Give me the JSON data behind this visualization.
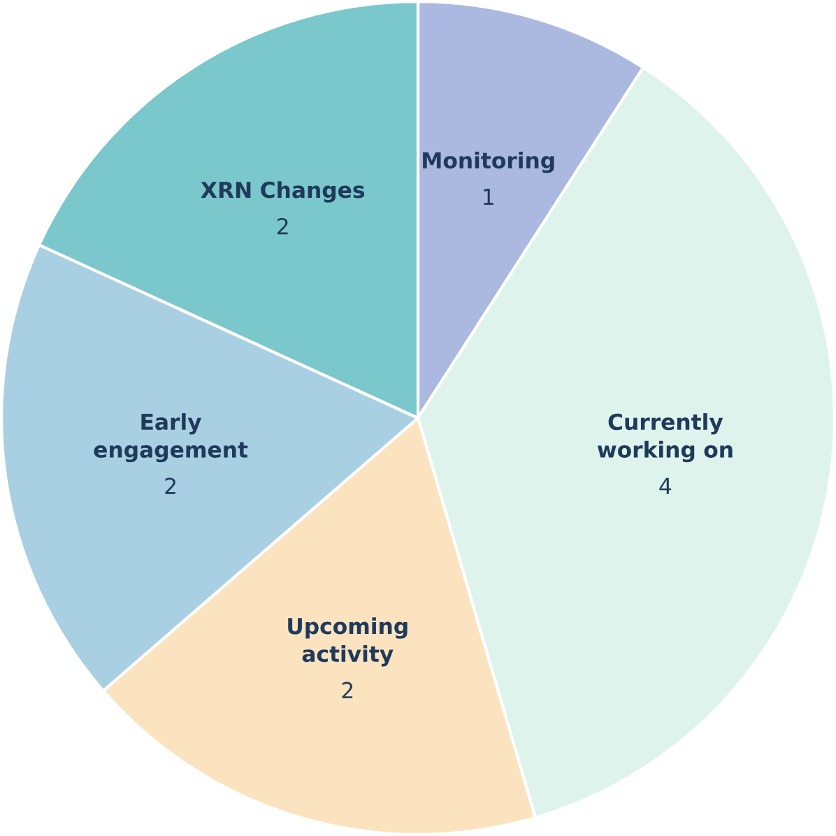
{
  "chart_data": {
    "type": "pie",
    "categories": [
      "Monitoring",
      "Currently working on",
      "Upcoming activity",
      "Early engagement",
      "XRN Changes"
    ],
    "values": [
      1,
      4,
      2,
      2,
      2
    ],
    "colors": [
      "#abb8e0",
      "#def3ec",
      "#fce3c0",
      "#a9cfe3",
      "#7ac7cc"
    ],
    "data_labels": true
  }
}
